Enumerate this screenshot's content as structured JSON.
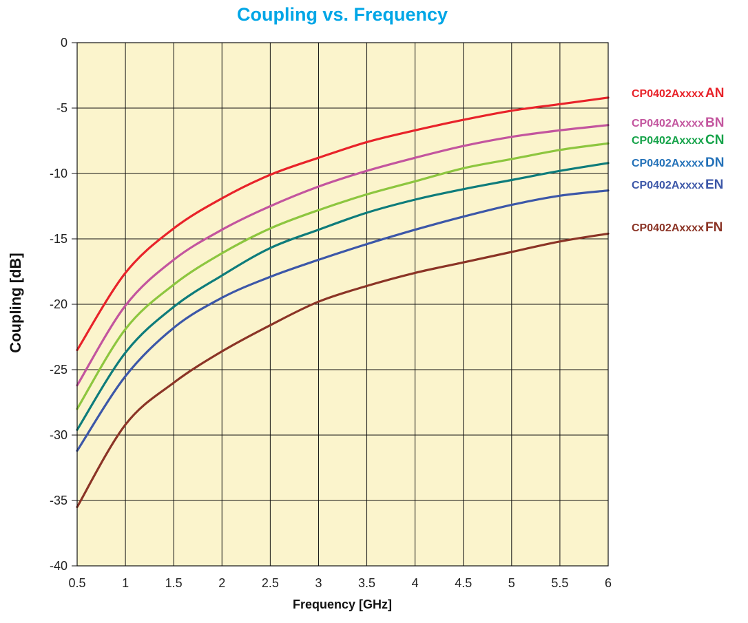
{
  "chart_data": {
    "type": "line",
    "title": "Coupling vs. Frequency",
    "xlabel": "Frequency [GHz]",
    "ylabel": "Coupling [dB]",
    "xlim": [
      0.5,
      6
    ],
    "ylim": [
      -40,
      0
    ],
    "xticks": [
      "0.5",
      "1",
      "1.5",
      "2",
      "2.5",
      "3",
      "3.5",
      "4",
      "4.5",
      "5",
      "5.5",
      "6"
    ],
    "yticks": [
      "0",
      "-5",
      "-10",
      "-15",
      "-20",
      "-25",
      "-30",
      "-35",
      "-40"
    ],
    "grid": true,
    "legend_position": "right",
    "x": [
      0.5,
      1,
      1.5,
      2,
      2.5,
      3,
      3.5,
      4,
      4.5,
      5,
      5.5,
      6
    ],
    "series": [
      {
        "name": "CP0402AxxxxAN",
        "prefix": "CP0402Axxxx",
        "suffix": "AN",
        "color": "#e8232a",
        "values": [
          -23.5,
          -17.6,
          -14.2,
          -11.9,
          -10.1,
          -8.8,
          -7.6,
          -6.7,
          -5.9,
          -5.2,
          -4.7,
          -4.2
        ]
      },
      {
        "name": "CP0402AxxxxBN",
        "prefix": "CP0402Axxxx",
        "suffix": "BN",
        "color": "#c3559e",
        "values": [
          -26.2,
          -20.1,
          -16.6,
          -14.3,
          -12.5,
          -11.0,
          -9.8,
          -8.8,
          -7.9,
          -7.2,
          -6.7,
          -6.3
        ]
      },
      {
        "name": "CP0402AxxxxCN",
        "prefix": "CP0402Axxxx",
        "suffix": "CN",
        "color": "#8dc63f",
        "text_color": "#16a34a",
        "values": [
          -28.0,
          -21.9,
          -18.5,
          -16.1,
          -14.2,
          -12.8,
          -11.6,
          -10.6,
          -9.6,
          -8.9,
          -8.2,
          -7.7
        ]
      },
      {
        "name": "CP0402AxxxxDN",
        "prefix": "CP0402Axxxx",
        "suffix": "DN",
        "color": "#0e7c7b",
        "text_color": "#2371b8",
        "values": [
          -29.6,
          -23.7,
          -20.2,
          -17.8,
          -15.7,
          -14.3,
          -13.0,
          -12.0,
          -11.2,
          -10.5,
          -9.8,
          -9.2
        ]
      },
      {
        "name": "CP0402AxxxxEN",
        "prefix": "CP0402Axxxx",
        "suffix": "EN",
        "color": "#3c57a8",
        "values": [
          -31.2,
          -25.5,
          -21.8,
          -19.5,
          -17.9,
          -16.6,
          -15.4,
          -14.3,
          -13.3,
          -12.4,
          -11.7,
          -11.3
        ]
      },
      {
        "name": "CP0402AxxxxFN",
        "prefix": "CP0402Axxxx",
        "suffix": "FN",
        "color": "#8b3426",
        "values": [
          -35.5,
          -29.2,
          -26.0,
          -23.6,
          -21.6,
          -19.8,
          -18.6,
          -17.6,
          -16.8,
          -16.0,
          -15.2,
          -14.6
        ]
      }
    ]
  },
  "style": {
    "title_color": "#00a6e6",
    "plot_background": "#fbf4cc",
    "grid_color": "#111111"
  }
}
